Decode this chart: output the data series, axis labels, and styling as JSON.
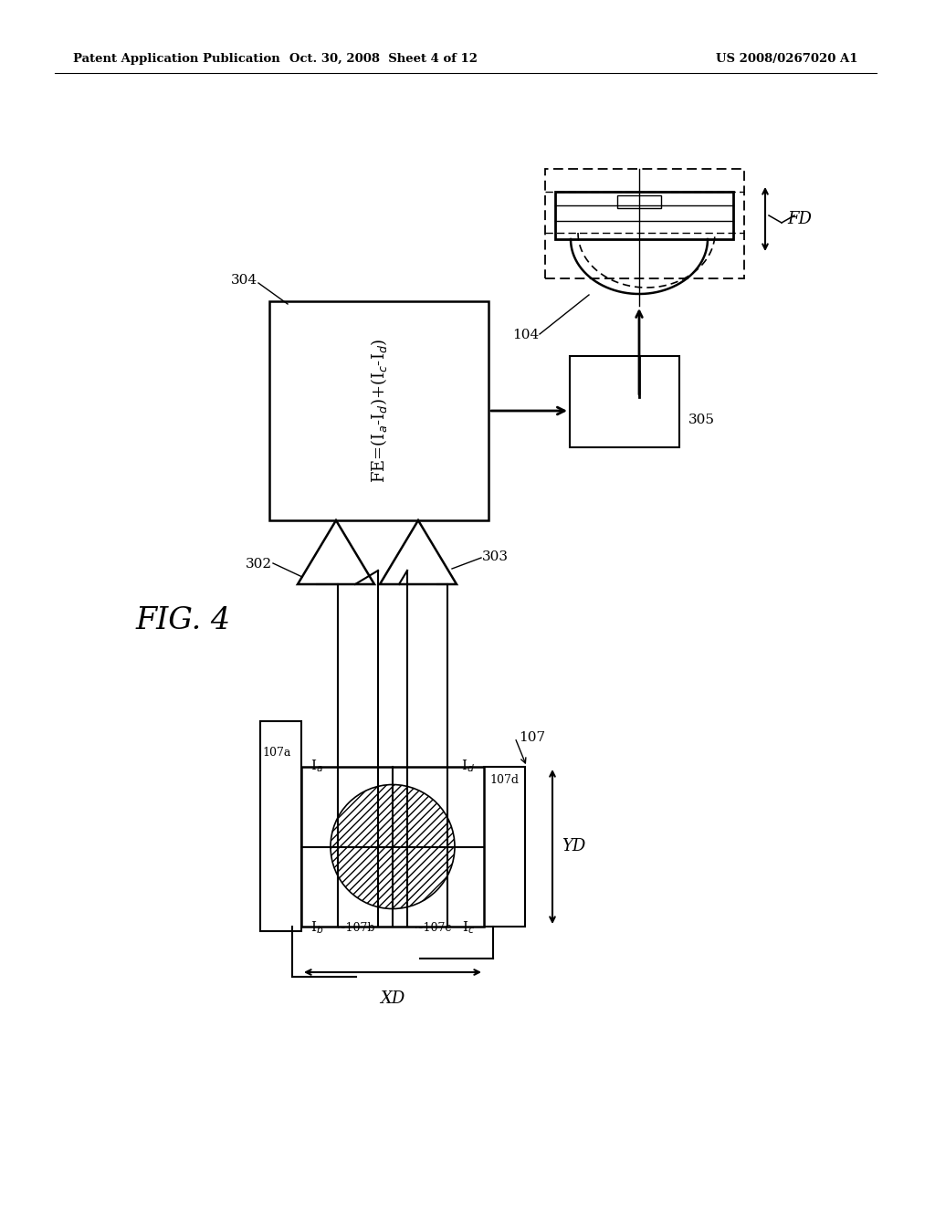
{
  "header_left": "Patent Application Publication",
  "header_center": "Oct. 30, 2008  Sheet 4 of 12",
  "header_right": "US 2008/0267020 A1",
  "fig_label": "FIG. 4",
  "bg": "#ffffff",
  "fg": "#000000"
}
